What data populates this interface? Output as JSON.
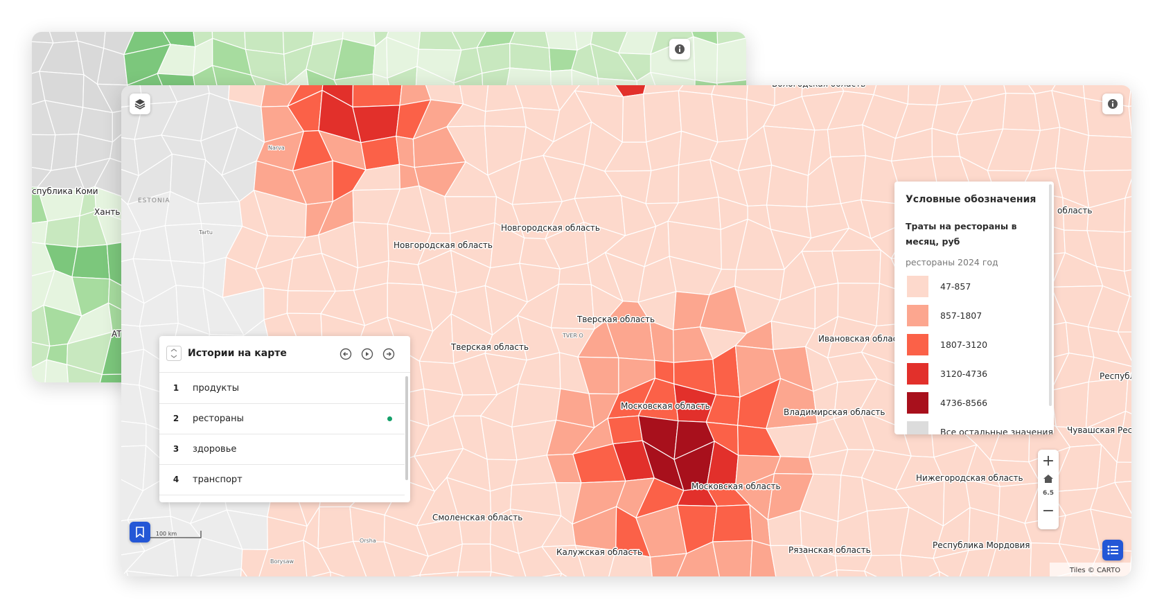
{
  "back_map": {
    "labels": [
      "спублика Коми",
      "Ханть",
      "ATVIA"
    ]
  },
  "map": {
    "labels": [
      "Вологодская область",
      "Новгородская область",
      "Новгородская область",
      "Тверская область",
      "Тверская область",
      "Ивановская област",
      "Московская область",
      "Владимирская область",
      "Московская область",
      "Нижегородская область",
      "Смоленская область",
      "Калужская область",
      "Рязанская область",
      "Республика Мордовия",
      "Чувашская Респу",
      "Республ",
      "область"
    ],
    "country_labels": [
      "ESTONIA"
    ],
    "city_labels": [
      "Narva",
      "Tartu",
      "Orsha",
      "Borysaw",
      "TVER O"
    ],
    "scale": "100 km",
    "attribution": "Tiles © CARTO",
    "zoom": "6.5"
  },
  "legend": {
    "title": "Условные обозначения",
    "subtitle": "Траты на рестораны в месяц, руб",
    "layer": "рестораны 2024 год",
    "items": [
      {
        "label": "47-857",
        "color": "#fdd9cc"
      },
      {
        "label": "857-1807",
        "color": "#fca68f"
      },
      {
        "label": "1807-3120",
        "color": "#fb6148"
      },
      {
        "label": "3120-4736",
        "color": "#e2302b"
      },
      {
        "label": "4736-8566",
        "color": "#a8101c"
      },
      {
        "label": "Все остальные значения",
        "color": "#dcdcdc"
      }
    ]
  },
  "stories": {
    "title": "Истории на карте",
    "items": [
      {
        "number": "1",
        "label": "продукты",
        "active": false
      },
      {
        "number": "2",
        "label": "рестораны",
        "active": true
      },
      {
        "number": "3",
        "label": "здоровье",
        "active": false
      },
      {
        "number": "4",
        "label": "транспорт",
        "active": false
      }
    ]
  }
}
